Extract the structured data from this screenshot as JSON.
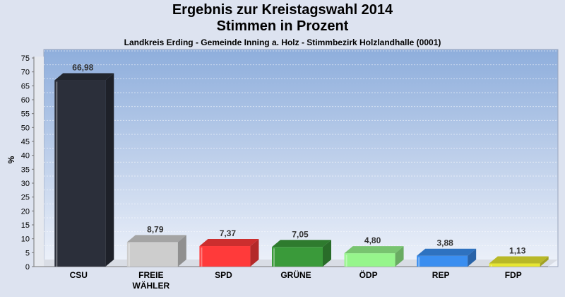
{
  "chart_data": {
    "type": "bar",
    "title_lines": [
      "Ergebnis zur Kreistagswahl 2014",
      "Stimmen in Prozent"
    ],
    "subtitle": "Landkreis Erding - Gemeinde Inning a. Holz - Stimmbezirk Holzlandhalle (0001)",
    "ylabel": "%",
    "ylim": [
      0,
      75
    ],
    "ytick_step": 5,
    "grid": true,
    "categories": [
      [
        "CSU"
      ],
      [
        "FREIE",
        "WÄHLER"
      ],
      [
        "SPD"
      ],
      [
        "GRÜNE"
      ],
      [
        "ÖDP"
      ],
      [
        "REP"
      ],
      [
        "FDP"
      ]
    ],
    "values": [
      66.98,
      8.79,
      7.37,
      7.05,
      4.8,
      3.88,
      1.13
    ],
    "value_labels": [
      "66,98",
      "8,79",
      "7,37",
      "7,05",
      "4,80",
      "3,88",
      "1,13"
    ],
    "colors": [
      "#2b2f3a",
      "#cdcdcd",
      "#ff3a3a",
      "#3a9a3a",
      "#96f58c",
      "#3a8ef0",
      "#e6e632"
    ]
  }
}
